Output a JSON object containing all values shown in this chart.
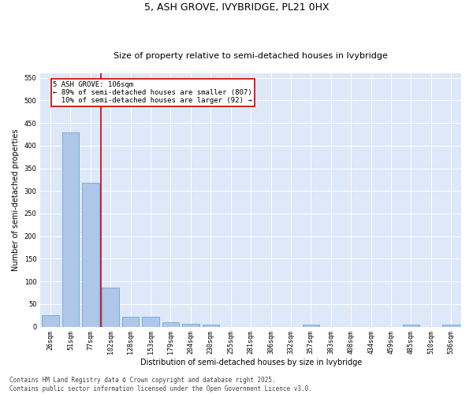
{
  "title1": "5, ASH GROVE, IVYBRIDGE, PL21 0HX",
  "title2": "Size of property relative to semi-detached houses in Ivybridge",
  "xlabel": "Distribution of semi-detached houses by size in Ivybridge",
  "ylabel": "Number of semi-detached properties",
  "categories": [
    "26sqm",
    "51sqm",
    "77sqm",
    "102sqm",
    "128sqm",
    "153sqm",
    "179sqm",
    "204sqm",
    "230sqm",
    "255sqm",
    "281sqm",
    "306sqm",
    "332sqm",
    "357sqm",
    "383sqm",
    "408sqm",
    "434sqm",
    "459sqm",
    "485sqm",
    "510sqm",
    "536sqm"
  ],
  "values": [
    26,
    430,
    318,
    87,
    22,
    22,
    10,
    6,
    5,
    0,
    0,
    0,
    0,
    5,
    0,
    0,
    0,
    0,
    5,
    0,
    5
  ],
  "bar_color": "#aec6e8",
  "bar_edge_color": "#5a9fd4",
  "vline_x": 2.5,
  "vline_color": "#cc0000",
  "annotation_text": "5 ASH GROVE: 106sqm\n← 89% of semi-detached houses are smaller (807)\n  10% of semi-detached houses are larger (92) →",
  "annotation_box_color": "#ffffff",
  "annotation_box_edge_color": "#cc0000",
  "ylim": [
    0,
    560
  ],
  "yticks": [
    0,
    50,
    100,
    150,
    200,
    250,
    300,
    350,
    400,
    450,
    500,
    550
  ],
  "background_color": "#dde8f8",
  "grid_color": "#ffffff",
  "footer": "Contains HM Land Registry data © Crown copyright and database right 2025.\nContains public sector information licensed under the Open Government Licence v3.0.",
  "title_fontsize": 9,
  "subtitle_fontsize": 8,
  "axis_label_fontsize": 7,
  "tick_fontsize": 6,
  "annotation_fontsize": 6.5,
  "footer_fontsize": 5.5
}
